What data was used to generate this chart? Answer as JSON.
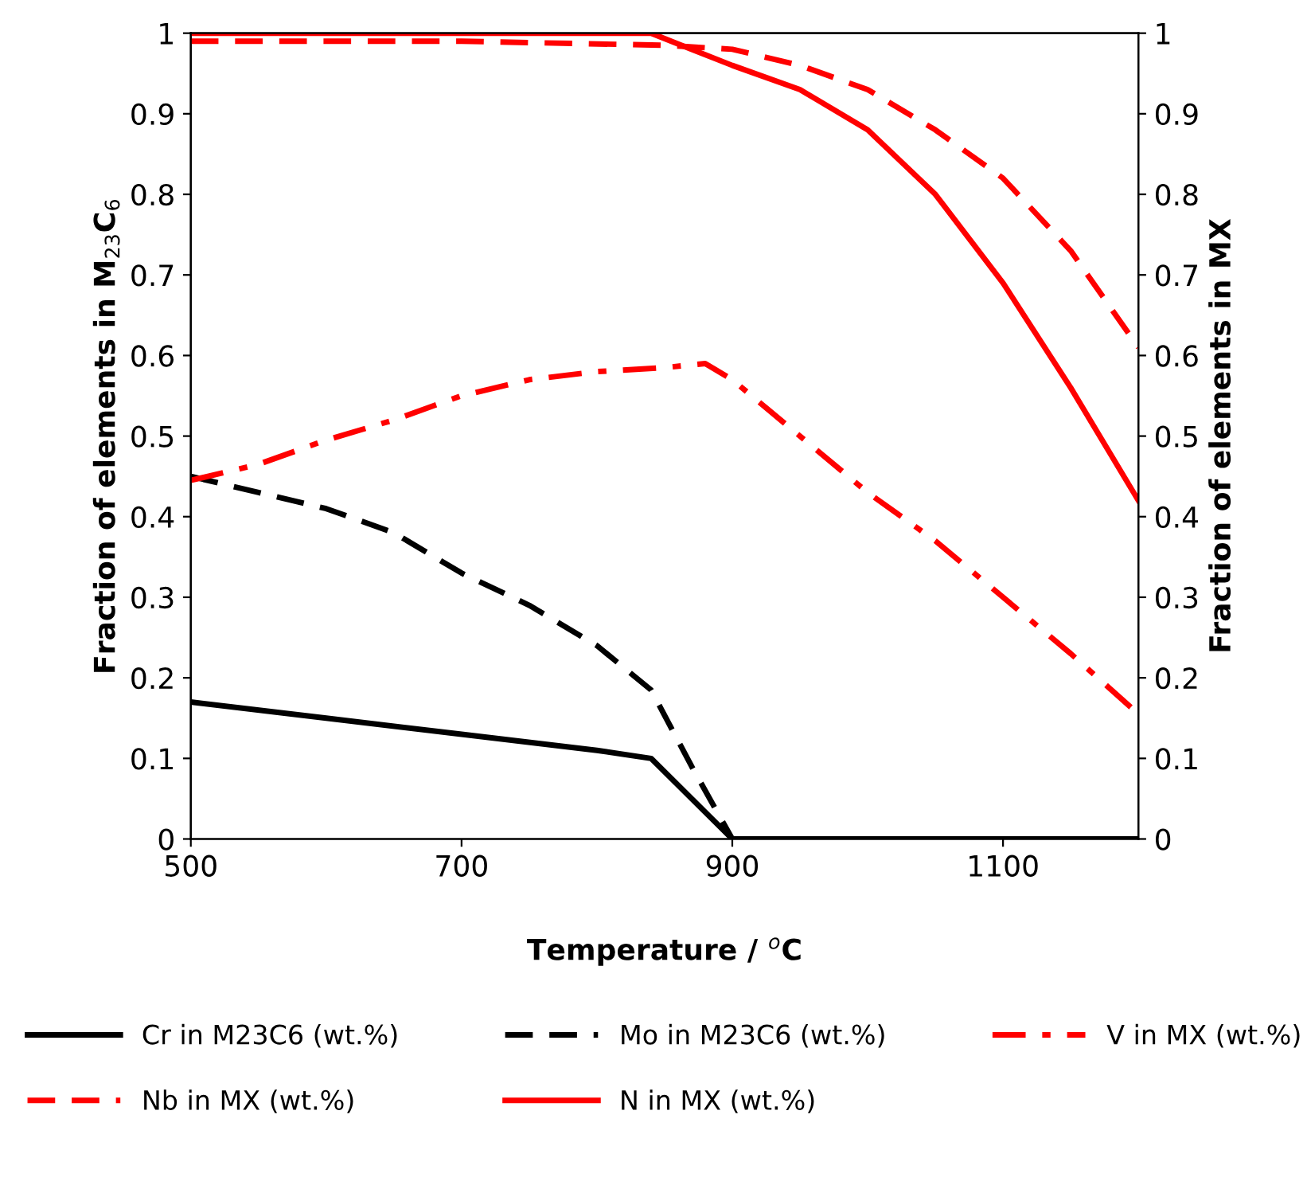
{
  "chart_data": {
    "type": "line",
    "xlabel": "Temperature / $^{o}$C",
    "ylabel": "Fraction of elements in M$_{23}$C$_{6}$",
    "y2label": "Fraction of elements in MX",
    "xlim": [
      500,
      1200
    ],
    "xticks": [
      500,
      700,
      900,
      1100
    ],
    "ylim": [
      0,
      1
    ],
    "yticks": [
      0,
      0.1,
      0.2,
      0.3,
      0.4,
      0.5,
      0.6,
      0.7,
      0.8,
      0.9,
      1
    ],
    "y2lim": [
      0,
      1
    ],
    "y2ticks": [
      0,
      0.1,
      0.2,
      0.3,
      0.4,
      0.5,
      0.6,
      0.7,
      0.8,
      0.9,
      1
    ],
    "grid": false,
    "legend": "bottom",
    "marker": "none",
    "series": [
      {
        "name": "Cr in M23C6 (wt.%)",
        "color": "#000000",
        "line_style": "solid",
        "x": [
          500,
          600,
          700,
          800,
          840,
          900,
          1000,
          1100,
          1200
        ],
        "values": [
          0.17,
          0.15,
          0.13,
          0.11,
          0.1,
          0,
          0,
          0,
          0
        ]
      },
      {
        "name": "Mo in M23C6 (wt.%)",
        "color": "#000000",
        "line_style": "dashed",
        "x": [
          500,
          550,
          600,
          650,
          700,
          750,
          800,
          840,
          870,
          900,
          1000,
          1100,
          1200
        ],
        "values": [
          0.45,
          0.43,
          0.41,
          0.38,
          0.33,
          0.29,
          0.24,
          0.185,
          0.09,
          0,
          0,
          0,
          0
        ]
      },
      {
        "name": "V in MX (wt.%)",
        "color": "#ff0000",
        "line_style": "dashdot",
        "axis": "y2",
        "x": [
          500,
          550,
          600,
          650,
          700,
          750,
          800,
          850,
          880,
          900,
          950,
          1000,
          1050,
          1100,
          1150,
          1200
        ],
        "values": [
          0.445,
          0.465,
          0.495,
          0.52,
          0.55,
          0.57,
          0.58,
          0.585,
          0.59,
          0.57,
          0.5,
          0.43,
          0.37,
          0.3,
          0.23,
          0.155
        ]
      },
      {
        "name": "Nb in MX (wt.%)",
        "color": "#ff0000",
        "line_style": "dashed",
        "axis": "y2",
        "x": [
          500,
          700,
          850,
          900,
          950,
          1000,
          1050,
          1100,
          1150,
          1200
        ],
        "values": [
          0.99,
          0.99,
          0.985,
          0.98,
          0.96,
          0.93,
          0.88,
          0.82,
          0.73,
          0.61
        ]
      },
      {
        "name": "N in MX (wt.%)",
        "color": "#ff0000",
        "line_style": "solid",
        "axis": "y2",
        "x": [
          500,
          700,
          840,
          870,
          900,
          950,
          1000,
          1050,
          1100,
          1150,
          1200
        ],
        "values": [
          1,
          1,
          1,
          0.98,
          0.96,
          0.93,
          0.88,
          0.8,
          0.69,
          0.56,
          0.42
        ]
      }
    ]
  }
}
